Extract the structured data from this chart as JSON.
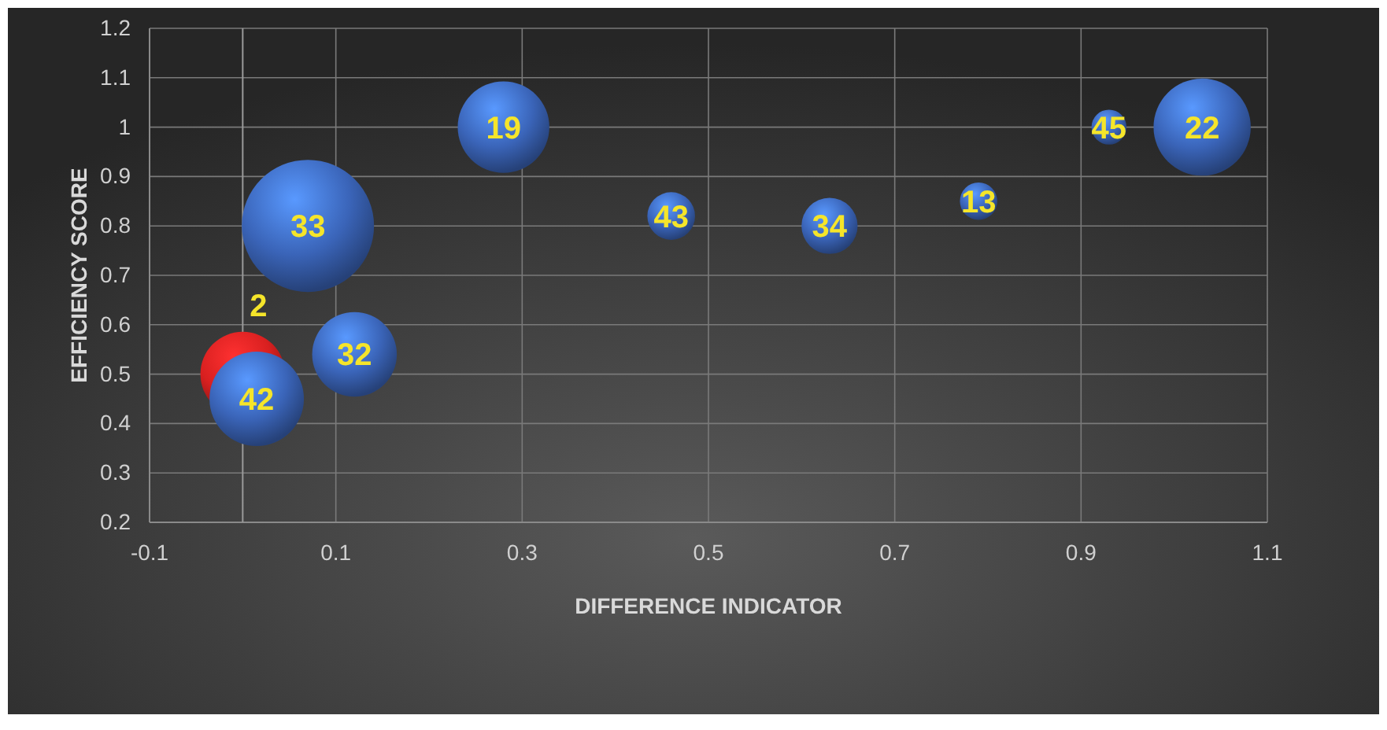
{
  "chart_data": {
    "type": "bubble",
    "xlabel": "DIFFERENCE INDICATOR",
    "ylabel": "EFFICIENCY SCORE",
    "xlim": [
      -0.1,
      1.1
    ],
    "xticks": [
      -0.1,
      0.1,
      0.3,
      0.5,
      0.7,
      0.9,
      1.1
    ],
    "ylim": [
      0.2,
      1.2
    ],
    "yticks": [
      0.2,
      0.3,
      0.4,
      0.5,
      0.6,
      0.7,
      0.8,
      0.9,
      1,
      1.1,
      1.2
    ],
    "grid": true,
    "series": [
      {
        "color": "#d92020",
        "x": [
          0.0
        ],
        "values": [
          0.5
        ],
        "sizes": [
          0.41
        ]
      },
      {
        "color": "#3a64b8",
        "x": [
          0.07,
          0.28,
          0.46,
          0.63,
          0.79,
          0.93,
          1.03,
          0.12,
          0.015
        ],
        "values": [
          0.8,
          1.0,
          0.82,
          0.8,
          0.85,
          1.0,
          1.0,
          0.54,
          0.45
        ],
        "sizes": [
          1,
          0.48,
          0.13,
          0.18,
          0.08,
          0.07,
          0.54,
          0.41,
          0.51
        ]
      }
    ],
    "annotations": [
      {
        "text": "2",
        "x": 0.0,
        "y": 0.5
      },
      {
        "text": "33",
        "x": 0.07,
        "y": 0.8
      },
      {
        "text": "19",
        "x": 0.28,
        "y": 1.0
      },
      {
        "text": "43",
        "x": 0.46,
        "y": 0.82
      },
      {
        "text": "34",
        "x": 0.63,
        "y": 0.8
      },
      {
        "text": "13",
        "x": 0.79,
        "y": 0.85
      },
      {
        "text": "45",
        "x": 0.93,
        "y": 1.0
      },
      {
        "text": "22",
        "x": 1.03,
        "y": 1.0
      },
      {
        "text": "32",
        "x": 0.12,
        "y": 0.54
      },
      {
        "text": "42",
        "x": 0.015,
        "y": 0.45
      }
    ]
  }
}
